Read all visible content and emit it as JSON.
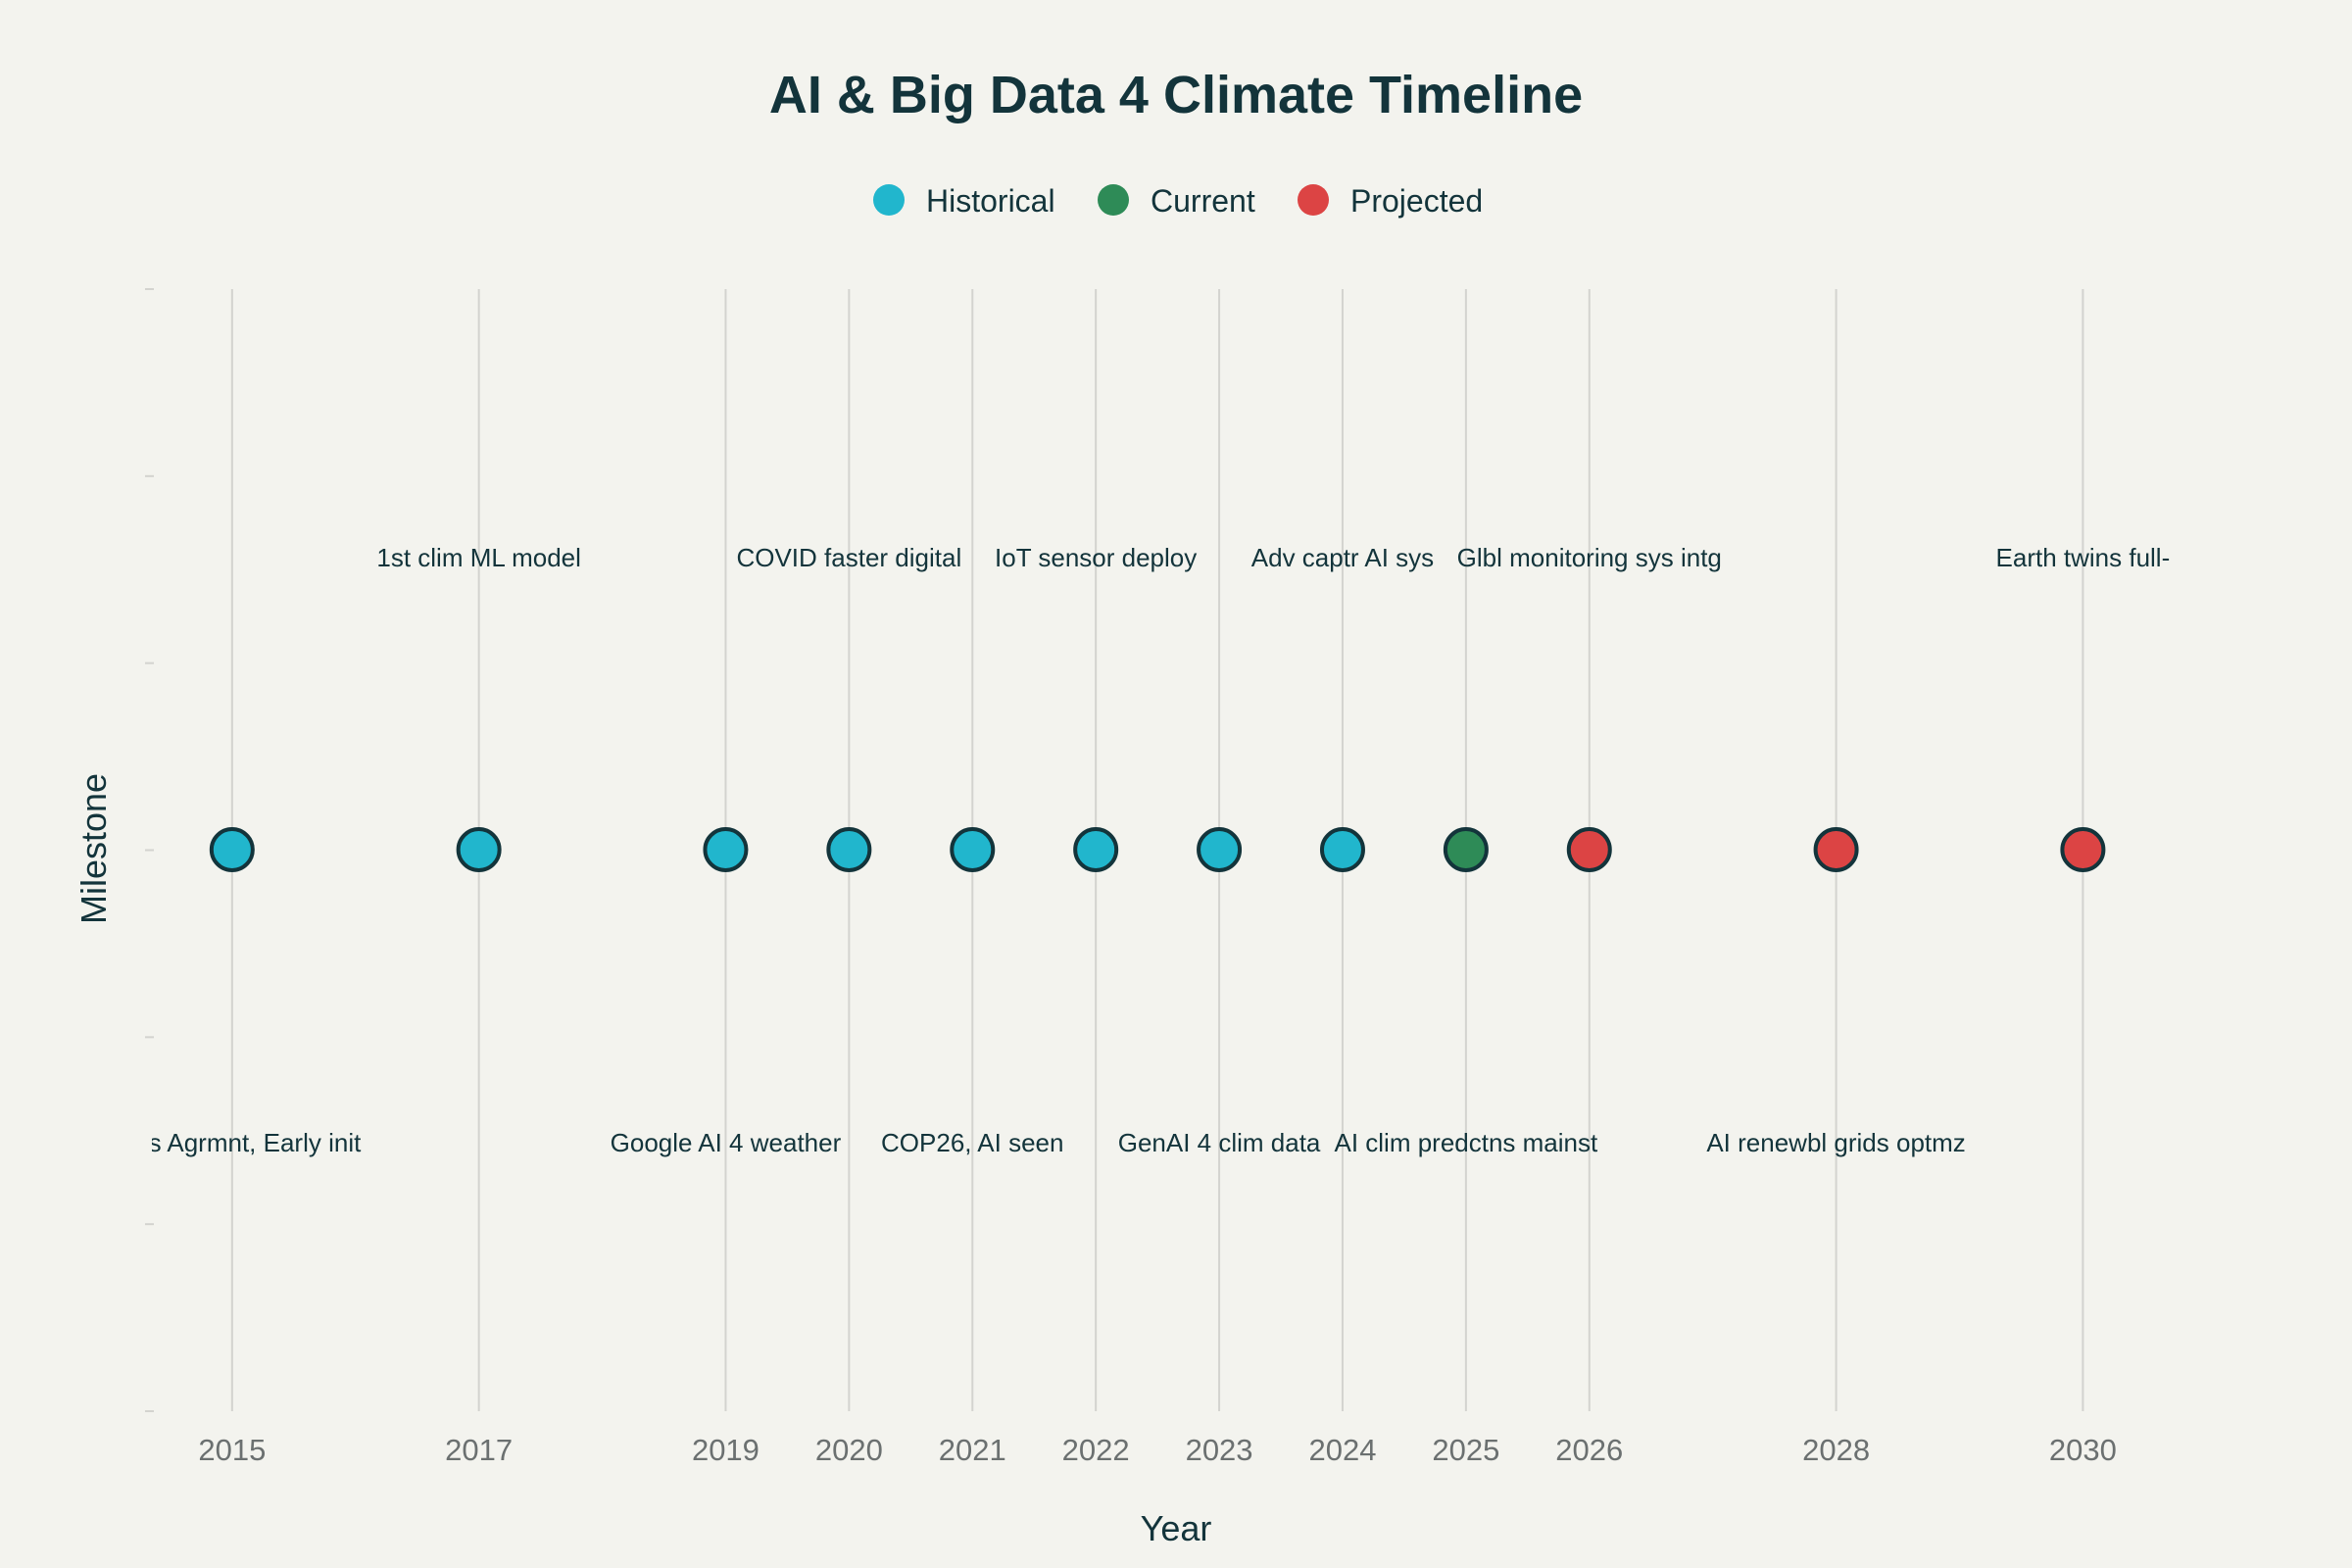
{
  "chart_data": {
    "type": "scatter",
    "title": "AI & Big Data 4 Climate Timeline",
    "xlabel": "Year",
    "ylabel": "Milestone",
    "xlim": [
      2014.35,
      2030.95
    ],
    "x_ticks": [
      2015,
      2017,
      2019,
      2020,
      2021,
      2022,
      2023,
      2024,
      2025,
      2026,
      2028,
      2030
    ],
    "legend": [
      {
        "name": "Historical",
        "color": "#21b6cd"
      },
      {
        "name": "Current",
        "color": "#2e8b57"
      },
      {
        "name": "Projected",
        "color": "#dc4444"
      }
    ],
    "points": [
      {
        "year": 2015,
        "category": "Historical",
        "label": "Paris Agrmnt, Early init",
        "position": "below"
      },
      {
        "year": 2017,
        "category": "Historical",
        "label": "1st clim ML model",
        "position": "above"
      },
      {
        "year": 2019,
        "category": "Historical",
        "label": "Google AI 4 weather",
        "position": "below"
      },
      {
        "year": 2020,
        "category": "Historical",
        "label": "COVID faster digital",
        "position": "above"
      },
      {
        "year": 2021,
        "category": "Historical",
        "label": "COP26, AI seen",
        "position": "below"
      },
      {
        "year": 2022,
        "category": "Historical",
        "label": "IoT sensor deploy",
        "position": "above"
      },
      {
        "year": 2023,
        "category": "Historical",
        "label": "GenAI 4 clim data",
        "position": "below"
      },
      {
        "year": 2024,
        "category": "Historical",
        "label": "Adv captr AI sys",
        "position": "above"
      },
      {
        "year": 2025,
        "category": "Current",
        "label": "AI clim predctns mainst",
        "position": "below"
      },
      {
        "year": 2026,
        "category": "Projected",
        "label": "Glbl monitoring sys intg",
        "position": "above"
      },
      {
        "year": 2028,
        "category": "Projected",
        "label": "AI renewbl grids optmz",
        "position": "below"
      },
      {
        "year": 2030,
        "category": "Projected",
        "label": "Earth twins full-",
        "position": "above"
      }
    ]
  }
}
